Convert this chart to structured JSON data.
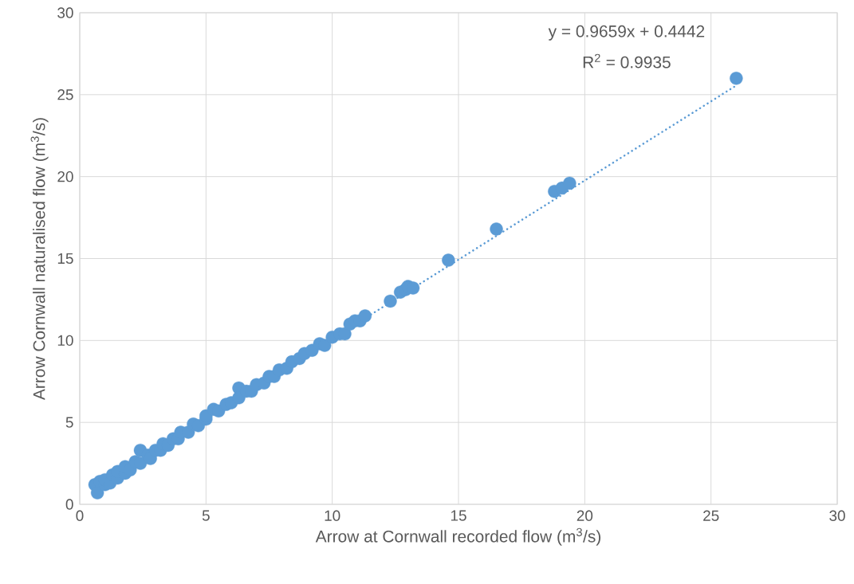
{
  "chart_data": {
    "type": "scatter",
    "xlabel": "Arrow at Cornwall recorded flow (m$^{3}$/s)",
    "ylabel": "Arrow Cornwall naturalised flow (m$^{3}$/s)",
    "annotations": [
      "y = 0.9659x + 0.4442",
      "R$^{2}$ = 0.9935"
    ],
    "xlim": [
      0,
      30
    ],
    "ylim": [
      0,
      30
    ],
    "xticks": [
      0,
      5,
      10,
      15,
      20,
      25,
      30
    ],
    "yticks": [
      0,
      5,
      10,
      15,
      20,
      25,
      30
    ],
    "grid": true,
    "marker": "circle",
    "series": [
      {
        "color": "#5b9bd5",
        "x": [
          0.6,
          0.7,
          0.8,
          1.0,
          1.0,
          1.2,
          1.3,
          1.5,
          1.5,
          1.8,
          1.8,
          2.0,
          2.2,
          2.4,
          2.4,
          2.7,
          2.8,
          3.0,
          3.2,
          3.3,
          3.5,
          3.7,
          3.9,
          4.0,
          4.3,
          4.5,
          4.7,
          5.0,
          5.0,
          5.3,
          5.5,
          5.8,
          6.0,
          6.3,
          6.3,
          6.6,
          6.8,
          7.0,
          7.3,
          7.5,
          7.7,
          7.9,
          8.2,
          8.4,
          8.7,
          8.9,
          9.2,
          9.5,
          9.7,
          10.0,
          10.3,
          10.5,
          10.7,
          10.9,
          11.1,
          11.3,
          12.3,
          12.7,
          12.9,
          13.0,
          13.2,
          14.6,
          16.5,
          18.8,
          19.1,
          19.4,
          26.0
        ],
        "values": [
          1.2,
          0.7,
          1.4,
          1.2,
          1.5,
          1.3,
          1.8,
          1.6,
          2.0,
          1.9,
          2.3,
          2.1,
          2.6,
          3.3,
          2.5,
          3.0,
          2.8,
          3.3,
          3.3,
          3.7,
          3.6,
          4.0,
          4.0,
          4.4,
          4.4,
          4.9,
          4.8,
          5.2,
          5.4,
          5.8,
          5.7,
          6.1,
          6.2,
          7.1,
          6.5,
          6.9,
          6.9,
          7.3,
          7.4,
          7.8,
          7.8,
          8.2,
          8.3,
          8.7,
          8.9,
          9.2,
          9.4,
          9.8,
          9.7,
          10.2,
          10.4,
          10.4,
          11.0,
          11.2,
          11.2,
          11.5,
          12.4,
          12.95,
          13.1,
          13.3,
          13.2,
          14.9,
          16.8,
          19.1,
          19.3,
          19.6,
          26.0
        ]
      },
      {
        "type": "line",
        "color": "#5b9bd5",
        "line_style": "dotted",
        "marker": "none",
        "x": [
          0.6,
          26.0
        ],
        "values": [
          1.02,
          25.56
        ]
      }
    ]
  }
}
